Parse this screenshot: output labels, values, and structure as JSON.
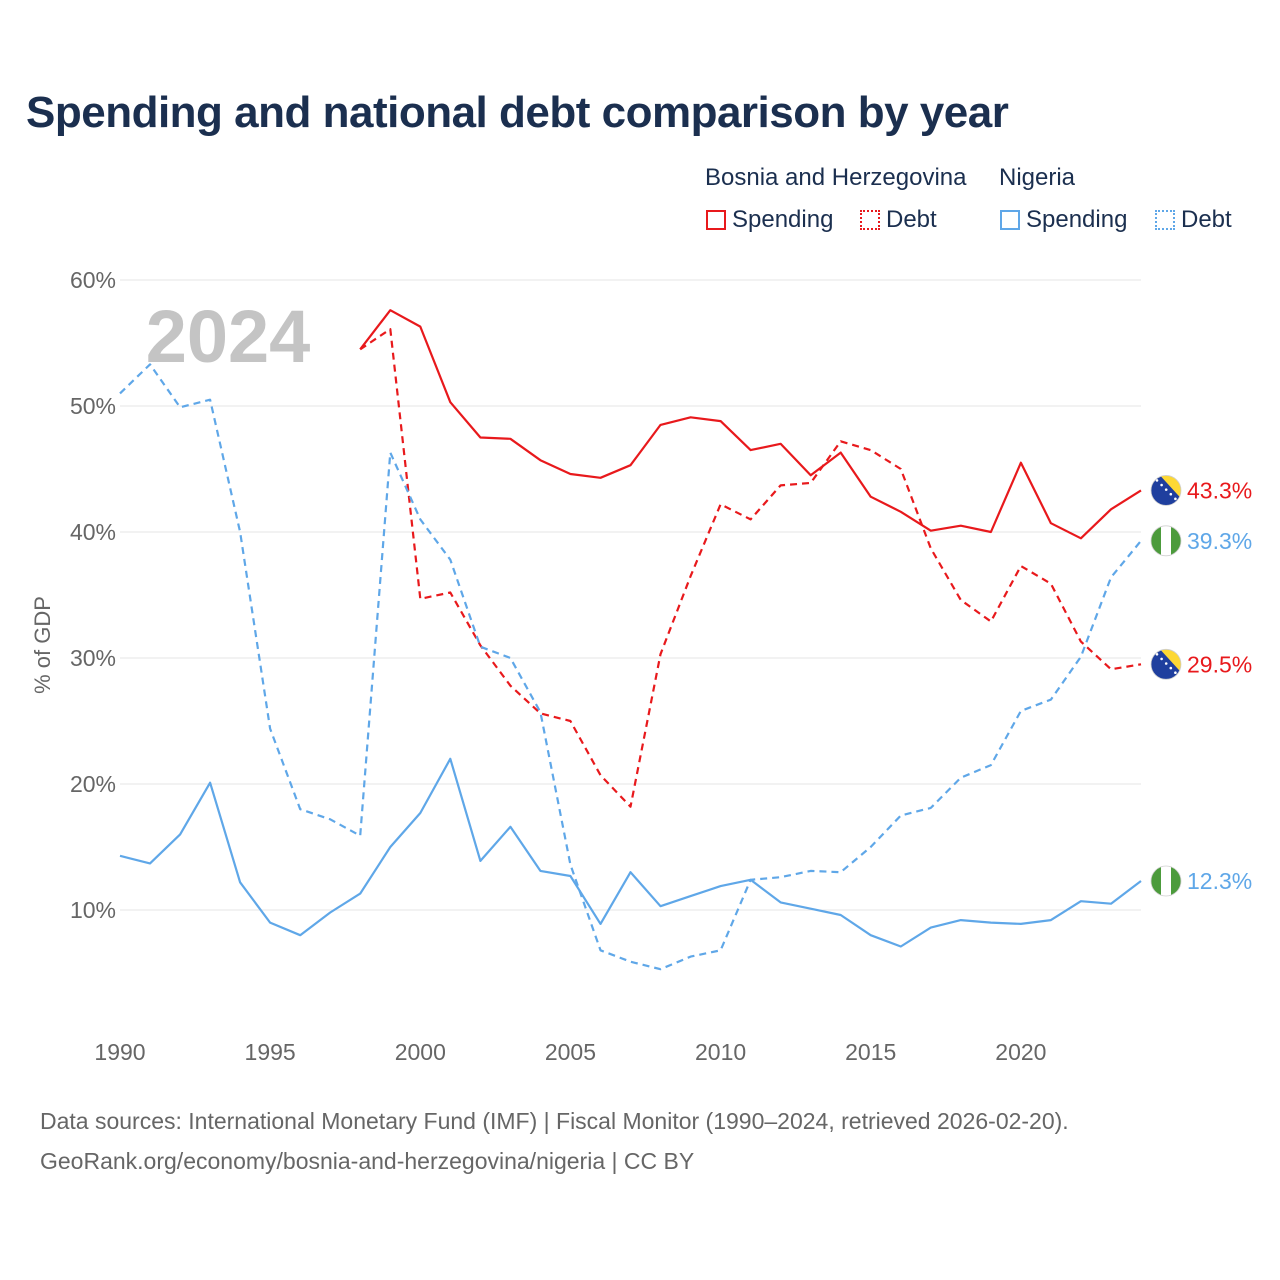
{
  "title": "Spending and national debt comparison by year",
  "legend": {
    "groups": [
      "Bosnia and Herzegovina",
      "Nigeria"
    ],
    "items": [
      "Spending",
      "Debt",
      "Spending",
      "Debt"
    ]
  },
  "footer": {
    "line1": "Data sources: International Monetary Fund (IMF) | Fiscal Monitor (1990–2024, retrieved 2026-02-20).",
    "line2": "GeoRank.org/economy/bosnia-and-herzegovina/nigeria | CC BY"
  },
  "colors": {
    "bosnia": "#e8191c",
    "nigeria": "#5fa7e8"
  },
  "chart_data": {
    "type": "line",
    "title": "Spending and national debt comparison by year",
    "year_label": "2024",
    "xlabel": "",
    "ylabel": "% of GDP",
    "xlim": [
      1990,
      2024
    ],
    "ylim": [
      0,
      60
    ],
    "xticks": [
      1990,
      1995,
      2000,
      2005,
      2010,
      2015,
      2020
    ],
    "xtick_labels": [
      "1990",
      "1995",
      "2000",
      "2005",
      "2010",
      "2015",
      "2020"
    ],
    "yticks": [
      10,
      20,
      30,
      40,
      50,
      60
    ],
    "ytick_labels": [
      "10%",
      "20%",
      "30%",
      "40%",
      "50%",
      "60%"
    ],
    "series": [
      {
        "name": "Bosnia and Herzegovina Spending",
        "color": "#e8191c",
        "dashed": false,
        "x": [
          1998,
          1999,
          2000,
          2001,
          2002,
          2003,
          2004,
          2005,
          2006,
          2007,
          2008,
          2009,
          2010,
          2011,
          2012,
          2013,
          2014,
          2015,
          2016,
          2017,
          2018,
          2019,
          2020,
          2021,
          2022,
          2023,
          2024
        ],
        "values": [
          54.5,
          57.6,
          56.3,
          50.3,
          47.5,
          47.4,
          45.7,
          44.6,
          44.3,
          45.3,
          48.5,
          49.1,
          48.8,
          46.5,
          47.0,
          44.5,
          46.3,
          42.8,
          41.6,
          40.1,
          40.5,
          40.0,
          45.5,
          40.7,
          39.5,
          41.8,
          43.3
        ],
        "end_label": "43.3%"
      },
      {
        "name": "Bosnia and Herzegovina Debt",
        "color": "#e8191c",
        "dashed": true,
        "x": [
          1998,
          1999,
          2000,
          2001,
          2002,
          2003,
          2004,
          2005,
          2006,
          2007,
          2008,
          2009,
          2010,
          2011,
          2012,
          2013,
          2014,
          2015,
          2016,
          2017,
          2018,
          2019,
          2020,
          2021,
          2022,
          2023,
          2024
        ],
        "values": [
          54.5,
          56.1,
          34.7,
          35.2,
          31.0,
          27.8,
          25.6,
          25.0,
          20.7,
          18.2,
          30.3,
          36.5,
          42.2,
          41.0,
          43.7,
          43.9,
          47.2,
          46.5,
          45.0,
          38.7,
          34.6,
          32.9,
          37.3,
          35.9,
          31.3,
          29.1,
          29.5
        ],
        "end_label": "29.5%"
      },
      {
        "name": "Nigeria Spending",
        "color": "#5fa7e8",
        "dashed": false,
        "x": [
          1990,
          1991,
          1992,
          1993,
          1994,
          1995,
          1996,
          1997,
          1998,
          1999,
          2000,
          2001,
          2002,
          2003,
          2004,
          2005,
          2006,
          2007,
          2008,
          2009,
          2010,
          2011,
          2012,
          2013,
          2014,
          2015,
          2016,
          2017,
          2018,
          2019,
          2020,
          2021,
          2022,
          2023,
          2024
        ],
        "values": [
          14.3,
          13.7,
          16.0,
          20.1,
          12.2,
          9.0,
          8.0,
          9.8,
          11.3,
          15.0,
          17.7,
          22.0,
          13.9,
          16.6,
          13.1,
          12.7,
          8.9,
          13.0,
          10.3,
          11.1,
          11.9,
          12.4,
          10.6,
          10.1,
          9.6,
          8.0,
          7.1,
          8.6,
          9.2,
          9.0,
          8.9,
          9.2,
          10.7,
          10.5,
          12.3
        ],
        "end_label": "12.3%"
      },
      {
        "name": "Nigeria Debt",
        "color": "#5fa7e8",
        "dashed": true,
        "x": [
          1990,
          1991,
          1992,
          1993,
          1994,
          1995,
          1996,
          1997,
          1998,
          1999,
          2000,
          2001,
          2002,
          2003,
          2004,
          2005,
          2006,
          2007,
          2008,
          2009,
          2010,
          2011,
          2012,
          2013,
          2014,
          2015,
          2016,
          2017,
          2018,
          2019,
          2020,
          2021,
          2022,
          2023,
          2024
        ],
        "values": [
          51.0,
          53.3,
          49.9,
          50.5,
          40.0,
          24.4,
          18.0,
          17.2,
          15.9,
          46.3,
          41.0,
          37.8,
          30.9,
          30.0,
          25.7,
          13.6,
          6.8,
          5.9,
          5.3,
          6.3,
          6.8,
          12.4,
          12.6,
          13.1,
          13.0,
          15.0,
          17.5,
          18.1,
          20.5,
          21.5,
          25.8,
          26.7,
          30.1,
          36.4,
          39.3
        ],
        "end_label": "39.3%"
      }
    ],
    "end_markers": [
      {
        "series": 0,
        "flag": "bosnia-flag-icon"
      },
      {
        "series": 1,
        "flag": "bosnia-flag-icon"
      },
      {
        "series": 2,
        "flag": "nigeria-flag-icon"
      },
      {
        "series": 3,
        "flag": "nigeria-flag-icon"
      }
    ]
  }
}
